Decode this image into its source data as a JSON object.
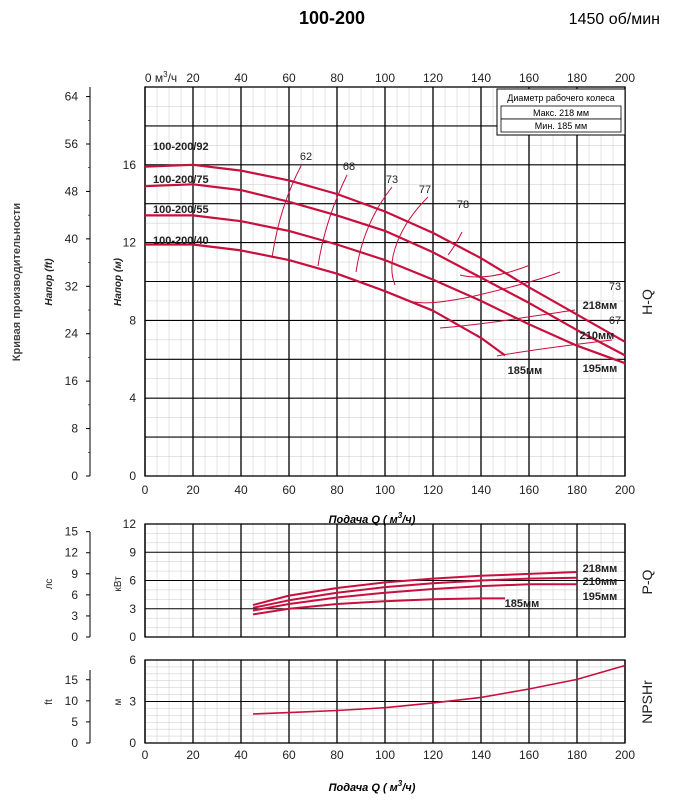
{
  "title": "100-200",
  "speed": "1450 об/мин",
  "side_label": "Кривая производительности",
  "impeller_box": {
    "title": "Диаметр рабочего колеса",
    "max": "Макс. 218 мм",
    "min": "Мин. 185 мм"
  },
  "colors": {
    "curve": "#c8103e",
    "grid": "#9a9a9a",
    "axis": "#000000"
  },
  "x_axis": {
    "label_prefix": "Подача Q (",
    "label_unit": "м",
    "label_sup": "3",
    "label_suffix": "/ч)",
    "ticks": [
      "0",
      "20",
      "40",
      "60",
      "80",
      "100",
      "120",
      "140",
      "160",
      "180",
      "200"
    ],
    "top_first": "0 м",
    "top_first_sup": "3",
    "top_first_suffix": "/ч"
  },
  "chart_data": [
    {
      "type": "line",
      "name_label": "H-Q",
      "xlim": [
        0,
        200
      ],
      "ylim": [
        0,
        20
      ],
      "ylabel": "Напор (м)",
      "ylabel_ft": "Напор (ft)",
      "y_ticks_m": [
        "0",
        "4",
        "8",
        "12",
        "16"
      ],
      "y_ticks_ft": [
        "0",
        "8",
        "16",
        "24",
        "32",
        "40",
        "48",
        "56",
        "64"
      ],
      "curves": [
        {
          "label": "100-200/92",
          "end_label": "218мм",
          "x": [
            0,
            20,
            40,
            60,
            80,
            100,
            120,
            140,
            160,
            180,
            200
          ],
          "y": [
            15.9,
            16.0,
            15.7,
            15.2,
            14.5,
            13.6,
            12.5,
            11.2,
            9.7,
            8.3,
            6.9
          ]
        },
        {
          "label": "100-200/75",
          "end_label": "210мм",
          "x": [
            0,
            20,
            40,
            60,
            80,
            100,
            120,
            140,
            160,
            180,
            200
          ],
          "y": [
            14.9,
            15.0,
            14.7,
            14.1,
            13.4,
            12.6,
            11.5,
            10.2,
            8.9,
            7.5,
            6.2
          ]
        },
        {
          "label": "100-200/55",
          "end_label": "195мм",
          "x": [
            0,
            20,
            40,
            60,
            80,
            100,
            120,
            140,
            160,
            180,
            200
          ],
          "y": [
            13.4,
            13.4,
            13.1,
            12.6,
            11.9,
            11.1,
            10.1,
            9.0,
            7.8,
            6.7,
            5.8
          ]
        },
        {
          "label": "100-200/40",
          "end_label": "185мм",
          "x": [
            0,
            20,
            40,
            60,
            80,
            100,
            120,
            140,
            150
          ],
          "y": [
            11.9,
            11.9,
            11.6,
            11.1,
            10.4,
            9.5,
            8.5,
            7.1,
            6.2
          ]
        }
      ],
      "efficiency_labels": [
        "62",
        "68",
        "73",
        "77",
        "78",
        "73",
        "67"
      ]
    },
    {
      "type": "line",
      "name_label": "P-Q",
      "xlim": [
        0,
        200
      ],
      "ylim": [
        0,
        12
      ],
      "ylabel": "кВт",
      "ylabel_hp": "лс",
      "y_ticks": [
        "0",
        "3",
        "6",
        "9",
        "12"
      ],
      "y_ticks_hp": [
        "0",
        "3",
        "6",
        "9",
        "12",
        "15"
      ],
      "curves": [
        {
          "end_label": "218мм",
          "x": [
            45,
            60,
            80,
            100,
            120,
            140,
            160,
            180
          ],
          "y": [
            3.4,
            4.4,
            5.2,
            5.8,
            6.2,
            6.5,
            6.7,
            6.9
          ]
        },
        {
          "end_label": "210мм",
          "x": [
            45,
            60,
            80,
            100,
            120,
            140,
            160,
            180
          ],
          "y": [
            3.1,
            3.9,
            4.7,
            5.3,
            5.7,
            6.0,
            6.2,
            6.3
          ]
        },
        {
          "end_label": "195мм",
          "x": [
            45,
            60,
            80,
            100,
            120,
            140,
            160,
            180
          ],
          "y": [
            2.8,
            3.5,
            4.2,
            4.7,
            5.1,
            5.4,
            5.6,
            5.6
          ]
        },
        {
          "end_label": "185мм",
          "x": [
            45,
            60,
            80,
            100,
            120,
            140,
            150
          ],
          "y": [
            2.4,
            3.0,
            3.5,
            3.8,
            4.0,
            4.1,
            4.1
          ]
        }
      ]
    },
    {
      "type": "line",
      "name_label": "NPSHr",
      "xlim": [
        0,
        200
      ],
      "ylim": [
        0,
        6
      ],
      "ylabel": "м",
      "ylabel_ft": "ft",
      "y_ticks": [
        "0",
        "3",
        "6"
      ],
      "y_ticks_ft": [
        "0",
        "5",
        "10",
        "15"
      ],
      "curves": [
        {
          "x": [
            45,
            60,
            80,
            100,
            120,
            140,
            160,
            180,
            200
          ],
          "y": [
            2.1,
            2.2,
            2.35,
            2.55,
            2.9,
            3.3,
            3.9,
            4.6,
            5.6
          ]
        }
      ]
    }
  ]
}
